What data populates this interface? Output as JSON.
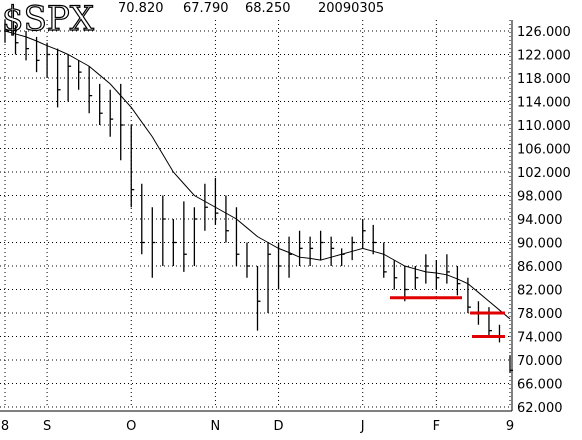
{
  "chart_data": {
    "type": "hlc",
    "title": "$SPX",
    "header_values": [
      "70.820",
      "67.790",
      "68.250",
      "20090305"
    ],
    "categories": [
      "8",
      null,
      null,
      null,
      "S",
      null,
      null,
      null,
      null,
      null,
      null,
      null,
      "O",
      null,
      null,
      null,
      null,
      null,
      null,
      null,
      "N",
      null,
      null,
      null,
      null,
      null,
      "D",
      null,
      null,
      null,
      null,
      null,
      null,
      null,
      "J",
      null,
      null,
      null,
      null,
      null,
      null,
      "F",
      null,
      null,
      null,
      null,
      null,
      null,
      "9"
    ],
    "high": [
      128,
      127,
      126,
      125,
      124,
      123,
      122,
      121,
      120,
      117,
      116,
      117,
      110,
      100,
      96,
      98,
      94,
      97,
      96,
      100,
      101,
      98,
      96,
      90,
      86,
      90,
      90,
      91,
      92,
      91,
      92,
      91,
      89,
      91,
      94,
      93,
      90,
      87,
      86,
      86,
      88,
      87,
      88,
      86,
      84,
      80,
      79,
      76,
      70.82
    ],
    "low": [
      124,
      122,
      121,
      119,
      118,
      113,
      114,
      116,
      112,
      110,
      108,
      104,
      96,
      88,
      84,
      86,
      86,
      85,
      86,
      92,
      93,
      90,
      86,
      84,
      75,
      78,
      82,
      84,
      86,
      86,
      87,
      86,
      86,
      87,
      89,
      88,
      84,
      82,
      80,
      82,
      83,
      82,
      83,
      81,
      78,
      76,
      74,
      73,
      67.79
    ],
    "close": [
      126,
      124,
      123,
      121,
      122,
      116,
      120,
      119,
      115,
      112,
      111,
      110,
      99,
      90,
      90,
      94,
      90,
      88,
      94,
      96,
      95,
      92,
      88,
      86,
      80,
      88,
      86,
      88,
      89,
      89,
      90,
      89,
      88,
      90,
      92,
      90,
      85,
      84,
      82,
      84,
      86,
      84,
      85,
      83,
      79,
      78,
      75,
      74,
      68.25
    ],
    "moving_average": [
      126,
      125.5,
      125,
      124.3,
      123.5,
      122.8,
      122,
      121,
      120,
      118.5,
      117,
      115,
      113,
      110.5,
      108,
      105,
      102,
      100,
      98,
      97,
      96,
      95,
      94,
      92.5,
      91,
      90,
      89,
      88.3,
      87.5,
      87.3,
      87,
      87.5,
      88,
      88.5,
      89,
      88.5,
      88,
      87,
      86,
      85.5,
      85,
      84.8,
      84.5,
      83.8,
      83,
      81.5,
      80,
      78.5,
      77
    ],
    "support_levels": [
      80.6,
      78,
      74
    ],
    "support_color": "#e00000",
    "color": "#000000",
    "ylim": [
      62,
      126
    ],
    "yticks": [
      {
        "value": 62,
        "label": "62.000"
      },
      {
        "value": 66,
        "label": "66.000"
      },
      {
        "value": 70,
        "label": "70.000"
      },
      {
        "value": 74,
        "label": "74.000"
      },
      {
        "value": 78,
        "label": "78.000"
      },
      {
        "value": 82,
        "label": "82.000"
      },
      {
        "value": 86,
        "label": "86.000"
      },
      {
        "value": 90,
        "label": "90.000"
      },
      {
        "value": 94,
        "label": "94.000"
      },
      {
        "value": 98,
        "label": "98.000"
      },
      {
        "value": 102,
        "label": "102.000"
      },
      {
        "value": 106,
        "label": "106.000"
      },
      {
        "value": 110,
        "label": "110.000"
      },
      {
        "value": 114,
        "label": "114.000"
      },
      {
        "value": 118,
        "label": "118.000"
      },
      {
        "value": 122,
        "label": "122.000"
      },
      {
        "value": 126,
        "label": "126.000"
      }
    ],
    "grid": true
  }
}
